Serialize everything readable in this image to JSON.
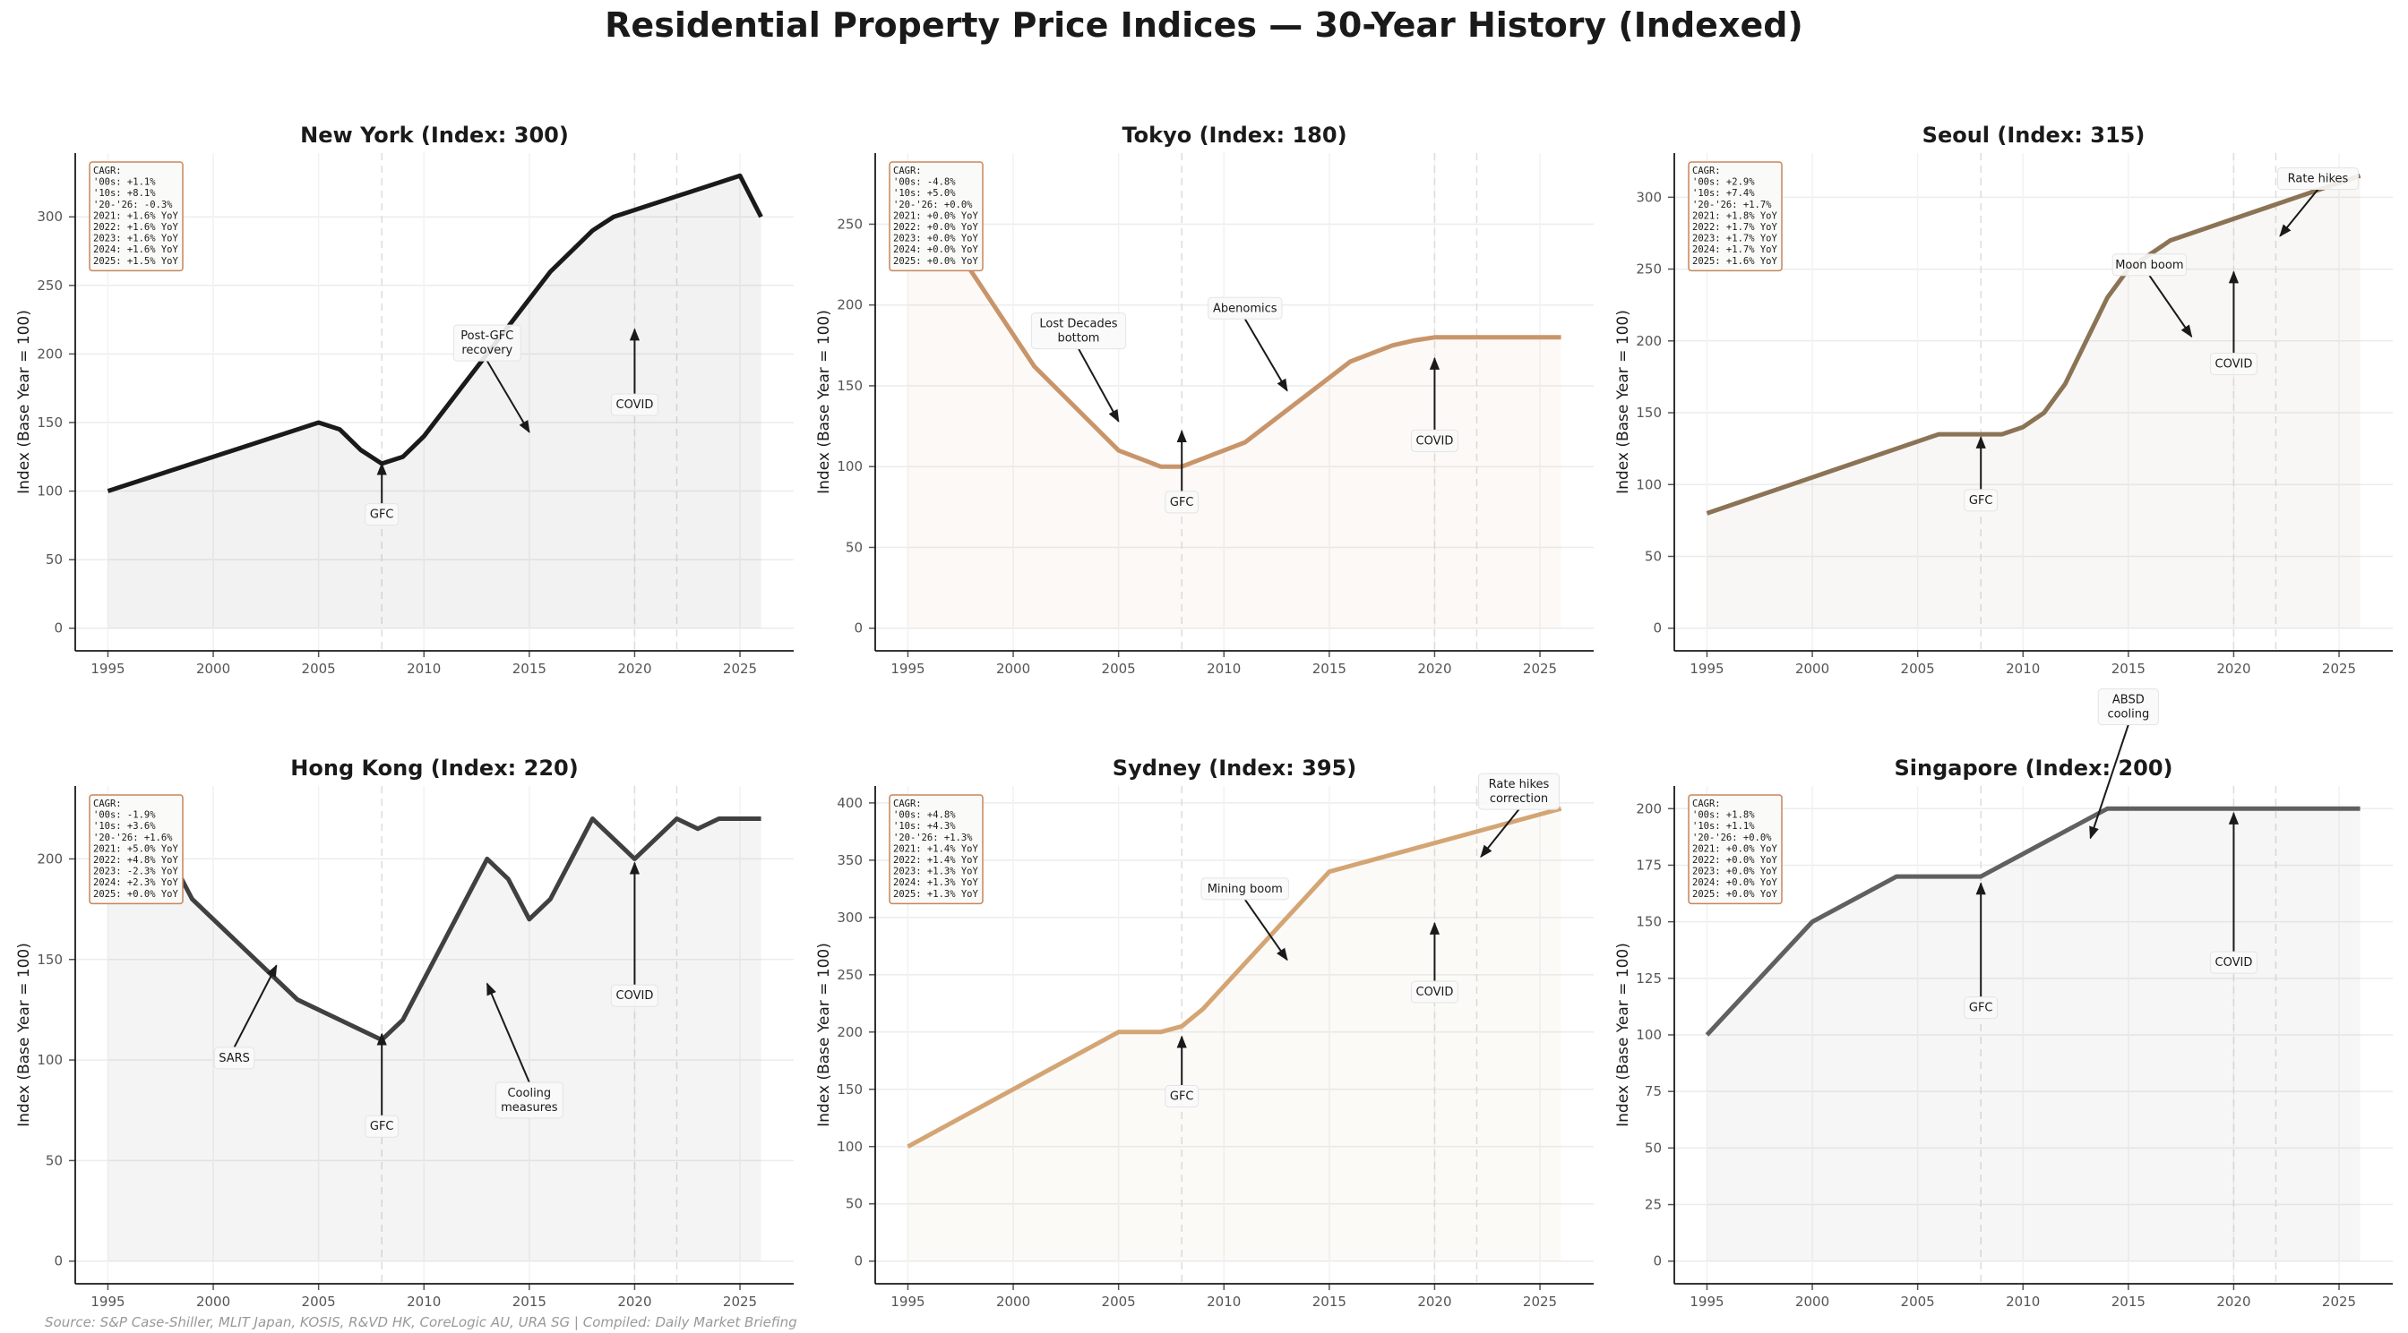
{
  "title": "Residential Property Price Indices — 30-Year History (Indexed)",
  "source": "Source: S&P Case-Shiller, MLIT Japan, KOSIS, R&VD HK, CoreLogic AU, URA SG | Compiled: Daily Market Briefing",
  "chart_data": [
    {
      "type": "line",
      "title": "New York  (Index: 300)",
      "ylabel": "Index (Base Year = 100)",
      "xlabel": "",
      "color": "#1a1a1a",
      "xlim": [
        1993.45,
        2027.55
      ],
      "ylim": [
        -16.5,
        346.5
      ],
      "xticks": [
        "1995",
        "2000",
        "2005",
        "2010",
        "2015",
        "2020",
        "2025"
      ],
      "yticks": [
        "0",
        "50",
        "100",
        "150",
        "200",
        "250",
        "300"
      ],
      "grid": true,
      "event_lines": [
        2008,
        2020,
        2022
      ],
      "x": [
        1995,
        2005,
        2006,
        2007,
        2008,
        2009,
        2010,
        2016,
        2018,
        2019,
        2025,
        2026
      ],
      "y": [
        100,
        150,
        145,
        130,
        120,
        125,
        140,
        260,
        290,
        300,
        330,
        300
      ],
      "cagr_box": [
        "CAGR:",
        "'00s: +1.1%",
        "'10s: +8.1%",
        "'20-'26: -0.3%",
        "2021: +1.6% YoY",
        "2022: +1.6% YoY",
        "2023: +1.6% YoY",
        "2024: +1.6% YoY",
        "2025: +1.5% YoY"
      ],
      "annotations": [
        {
          "label": "GFC",
          "x": 2008,
          "y": 120
        },
        {
          "label": "Post-GFC\nrecovery",
          "x": 2015,
          "y": 143
        },
        {
          "label": "COVID",
          "x": 2020,
          "y": 218
        }
      ]
    },
    {
      "type": "line",
      "title": "Tokyo  (Index: 180)",
      "ylabel": "Index (Base Year = 100)",
      "xlabel": "",
      "color": "#c8956a",
      "xlim": [
        1993.45,
        2027.55
      ],
      "ylim": [
        -14,
        294
      ],
      "xticks": [
        "1995",
        "2000",
        "2005",
        "2010",
        "2015",
        "2020",
        "2025"
      ],
      "yticks": [
        "0",
        "50",
        "100",
        "150",
        "200",
        "250"
      ],
      "grid": true,
      "event_lines": [
        2008,
        2020,
        2022
      ],
      "x": [
        1995,
        2001,
        2005,
        2007,
        2008,
        2011,
        2016,
        2018,
        2019,
        2020,
        2026
      ],
      "y": [
        280,
        162,
        110,
        100,
        100,
        115,
        165,
        175,
        178,
        180,
        180
      ],
      "cagr_box": [
        "CAGR:",
        "'00s: -4.8%",
        "'10s: +5.0%",
        "'20-'26: +0.0%",
        "2021: +0.0% YoY",
        "2022: +0.0% YoY",
        "2023: +0.0% YoY",
        "2024: +0.0% YoY",
        "2025: +0.0% YoY"
      ],
      "annotations": [
        {
          "label": "Lost Decades\nbottom",
          "x": 2005,
          "y": 128
        },
        {
          "label": "GFC",
          "x": 2008,
          "y": 122
        },
        {
          "label": "Abenomics",
          "x": 2013,
          "y": 147
        },
        {
          "label": "COVID",
          "x": 2020,
          "y": 167
        }
      ]
    },
    {
      "type": "line",
      "title": "Seoul  (Index: 315)",
      "ylabel": "Index (Base Year = 100)",
      "xlabel": "",
      "color": "#8b7355",
      "xlim": [
        1993.45,
        2027.55
      ],
      "ylim": [
        -15.75,
        330.75
      ],
      "xticks": [
        "1995",
        "2000",
        "2005",
        "2010",
        "2015",
        "2020",
        "2025"
      ],
      "yticks": [
        "0",
        "50",
        "100",
        "150",
        "200",
        "250",
        "300"
      ],
      "grid": true,
      "event_lines": [
        2008,
        2020,
        2022
      ],
      "x": [
        1995,
        2006,
        2009,
        2010,
        2011,
        2012,
        2014,
        2015,
        2017,
        2026
      ],
      "y": [
        80,
        135,
        135,
        140,
        150,
        170,
        230,
        250,
        270,
        315
      ],
      "cagr_box": [
        "CAGR:",
        "'00s: +2.9%",
        "'10s: +7.4%",
        "'20-'26: +1.7%",
        "2021: +1.8% YoY",
        "2022: +1.7% YoY",
        "2023: +1.7% YoY",
        "2024: +1.7% YoY",
        "2025: +1.6% YoY"
      ],
      "annotations": [
        {
          "label": "GFC",
          "x": 2008,
          "y": 133
        },
        {
          "label": "Moon boom",
          "x": 2018,
          "y": 203
        },
        {
          "label": "COVID",
          "x": 2020,
          "y": 248
        },
        {
          "label": "Rate hikes",
          "x": 2022.2,
          "y": 273
        }
      ]
    },
    {
      "type": "line",
      "title": "Hong Kong  (Index: 220)",
      "ylabel": "Index (Base Year = 100)",
      "xlabel": "",
      "color": "#404040",
      "xlim": [
        1993.45,
        2027.55
      ],
      "ylim": [
        -11.25,
        236.25
      ],
      "xticks": [
        "1995",
        "2000",
        "2005",
        "2010",
        "2015",
        "2020",
        "2025"
      ],
      "yticks": [
        "0",
        "50",
        "100",
        "150",
        "200"
      ],
      "grid": true,
      "event_lines": [
        2008,
        2020,
        2022
      ],
      "x": [
        1995,
        1997,
        1998,
        1999,
        2004,
        2008,
        2009,
        2013,
        2014,
        2015,
        2016,
        2018,
        2020,
        2022,
        2023,
        2024,
        2026
      ],
      "y": [
        200,
        222,
        200,
        180,
        130,
        110,
        120,
        200,
        190,
        170,
        180,
        220,
        200,
        220,
        215,
        220,
        220
      ],
      "cagr_box": [
        "CAGR:",
        "'00s: -1.9%",
        "'10s: +3.6%",
        "'20-'26: +1.6%",
        "2021: +5.0% YoY",
        "2022: +4.8% YoY",
        "2023: -2.3% YoY",
        "2024: +2.3% YoY",
        "2025: +0.0% YoY"
      ],
      "annotations": [
        {
          "label": "SARS",
          "x": 2003,
          "y": 147
        },
        {
          "label": "GFC",
          "x": 2008,
          "y": 113
        },
        {
          "label": "Cooling\nmeasures",
          "x": 2013,
          "y": 138
        },
        {
          "label": "COVID",
          "x": 2020,
          "y": 198
        }
      ]
    },
    {
      "type": "line",
      "title": "Sydney  (Index: 395)",
      "ylabel": "Index (Base Year = 100)",
      "xlabel": "",
      "color": "#d4a574",
      "xlim": [
        1993.45,
        2027.55
      ],
      "ylim": [
        -19.75,
        414.75
      ],
      "xticks": [
        "1995",
        "2000",
        "2005",
        "2010",
        "2015",
        "2020",
        "2025"
      ],
      "yticks": [
        "0",
        "50",
        "100",
        "150",
        "200",
        "250",
        "300",
        "350",
        "400"
      ],
      "grid": true,
      "event_lines": [
        2008,
        2020,
        2022
      ],
      "x": [
        1995,
        2005,
        2007,
        2008,
        2009,
        2015,
        2026
      ],
      "y": [
        100,
        200,
        200,
        205,
        220,
        340,
        395
      ],
      "cagr_box": [
        "CAGR:",
        "'00s: +4.8%",
        "'10s: +4.3%",
        "'20-'26: +1.3%",
        "2021: +1.4% YoY",
        "2022: +1.4% YoY",
        "2023: +1.3% YoY",
        "2024: +1.3% YoY",
        "2025: +1.3% YoY"
      ],
      "annotations": [
        {
          "label": "GFC",
          "x": 2008,
          "y": 196
        },
        {
          "label": "Mining boom",
          "x": 2013,
          "y": 263
        },
        {
          "label": "COVID",
          "x": 2020,
          "y": 295
        },
        {
          "label": "Rate hikes\ncorrection",
          "x": 2022.2,
          "y": 353
        }
      ]
    },
    {
      "type": "line",
      "title": "Singapore  (Index: 200)",
      "ylabel": "Index (Base Year = 100)",
      "xlabel": "",
      "color": "#606060",
      "xlim": [
        1993.45,
        2027.55
      ],
      "ylim": [
        -10,
        210
      ],
      "xticks": [
        "1995",
        "2000",
        "2005",
        "2010",
        "2015",
        "2020",
        "2025"
      ],
      "yticks": [
        "0",
        "25",
        "50",
        "75",
        "100",
        "125",
        "150",
        "175",
        "200"
      ],
      "grid": true,
      "event_lines": [
        2008,
        2020,
        2022
      ],
      "x": [
        1995,
        2000,
        2004,
        2008,
        2014,
        2026
      ],
      "y": [
        100,
        150,
        170,
        170,
        200,
        200
      ],
      "cagr_box": [
        "CAGR:",
        "'00s: +1.8%",
        "'10s: +1.1%",
        "'20-'26: +0.0%",
        "2021: +0.0% YoY",
        "2022: +0.0% YoY",
        "2023: +0.0% YoY",
        "2024: +0.0% YoY",
        "2025: +0.0% YoY"
      ],
      "annotations": [
        {
          "label": "GFC",
          "x": 2008,
          "y": 167
        },
        {
          "label": "ABSD\ncooling",
          "x": 2013.2,
          "y": 187
        },
        {
          "label": "COVID",
          "x": 2020,
          "y": 198
        }
      ]
    }
  ]
}
